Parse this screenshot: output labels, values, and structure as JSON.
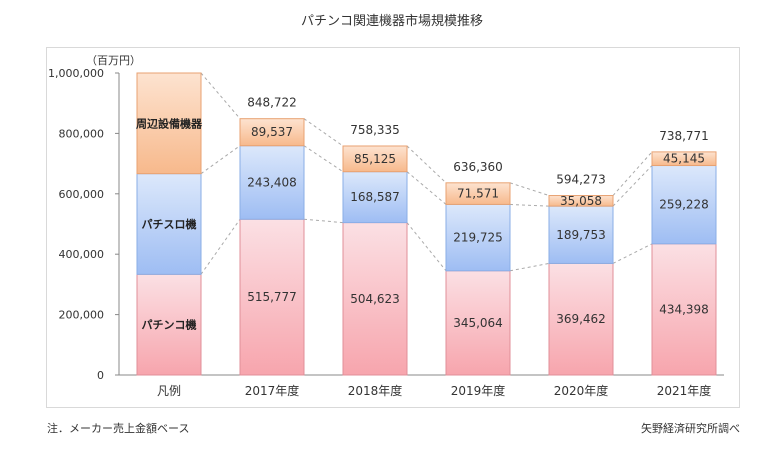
{
  "title": "パチンコ関連機器市場規模推移",
  "note_left": "注．メーカー売上金額ベース",
  "note_right": "矢野経済研究所調べ",
  "chart_data": {
    "type": "bar",
    "stacked": true,
    "title": "パチンコ関連機器市場規模推移",
    "unit_label": "（百万円）",
    "ylim": [
      0,
      1000000
    ],
    "yticks": [
      {
        "value": 0,
        "label": "0"
      },
      {
        "value": 200000,
        "label": "200,000"
      },
      {
        "value": 400000,
        "label": "400,000"
      },
      {
        "value": 600000,
        "label": "600,000"
      },
      {
        "value": 800000,
        "label": "800,000"
      },
      {
        "value": 1000000,
        "label": "1,000,000"
      }
    ],
    "legend_category": "凡例",
    "categories": [
      "2017年度",
      "2018年度",
      "2019年度",
      "2020年度",
      "2021年度"
    ],
    "series": [
      {
        "name": "パチンコ機",
        "values": [
          515777,
          504623,
          345064,
          369462,
          434398
        ],
        "labels": [
          "515,777",
          "504,623",
          "345,064",
          "369,462",
          "434,398"
        ],
        "color_top": "#fbe0e4",
        "color_bottom": "#f7a5ad",
        "stroke": "#e08f98"
      },
      {
        "name": "パチスロ機",
        "values": [
          243408,
          168587,
          219725,
          189753,
          259228
        ],
        "labels": [
          "243,408",
          "168,587",
          "219,725",
          "189,753",
          "259,228"
        ],
        "color_top": "#dce8fb",
        "color_bottom": "#9ebdf3",
        "stroke": "#8aaee6"
      },
      {
        "name": "周辺設備機器",
        "values": [
          89537,
          85125,
          71571,
          35058,
          45145
        ],
        "labels": [
          "89,537",
          "85,125",
          "71,571",
          "35,058",
          "45,145"
        ],
        "color_top": "#fde3d0",
        "color_bottom": "#f7b98c",
        "stroke": "#e8a272"
      }
    ],
    "totals": [
      848722,
      758335,
      636360,
      594273,
      738771
    ],
    "total_labels": [
      "848,722",
      "758,335",
      "636,360",
      "594,273",
      "738,771"
    ],
    "legend_placement": "first-column"
  }
}
